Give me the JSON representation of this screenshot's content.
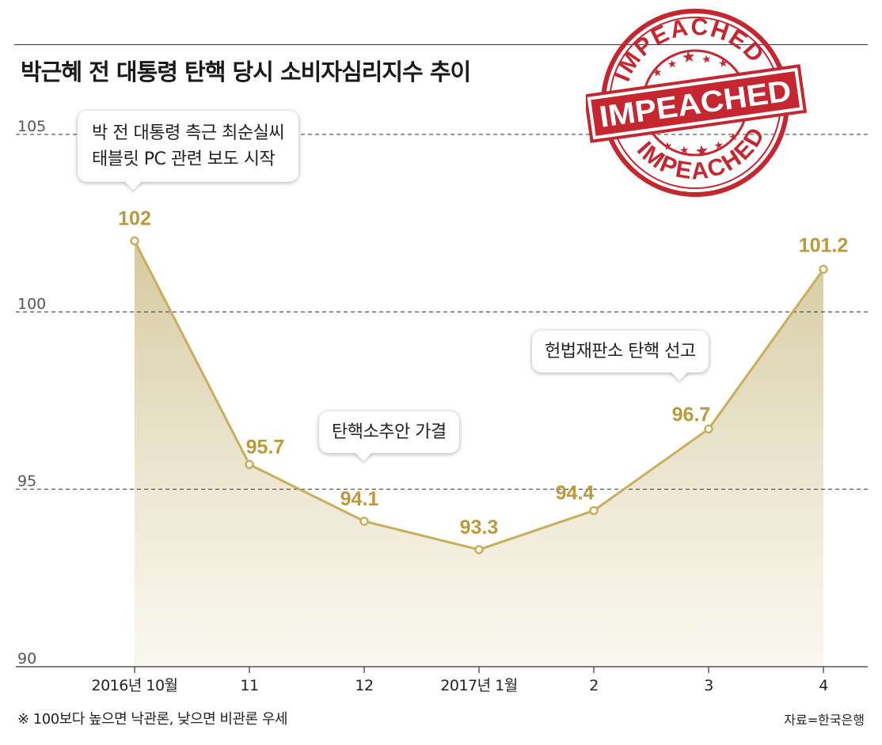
{
  "title": "박근혜 전 대통령 탄핵 당시 소비자심리지수 추이",
  "colors": {
    "line": "#c9af5b",
    "label": "#b99a3c",
    "stamp": "#c4272f"
  },
  "chart_data": {
    "type": "area",
    "categories": [
      "2016년 10월",
      "11",
      "12",
      "2017년 1월",
      "2",
      "3",
      "4"
    ],
    "values": [
      102,
      95.7,
      94.1,
      93.3,
      94.4,
      96.7,
      101.2
    ],
    "data_labels": [
      "102",
      "95.7",
      "94.1",
      "93.3",
      "94.4",
      "96.7",
      "101.2"
    ],
    "yticks": [
      90,
      95,
      100,
      105
    ],
    "ytick_labels": [
      "90",
      "95",
      "100",
      "105"
    ],
    "ylim": [
      90,
      105
    ],
    "grid": "horizontal-dashed",
    "annotations": [
      {
        "text": "박 전 대통령 측근 최순실씨 태블릿 PC 관련 보도 시작",
        "at": "2016년 10월"
      },
      {
        "text": "탄핵소추안 가결",
        "at": "12"
      },
      {
        "text": "헌법재판소 탄핵 선고",
        "at": "3"
      }
    ]
  },
  "callouts": {
    "c1_line1": "박 전 대통령 측근 최순실씨",
    "c1_line2": "태블릿 PC 관련 보도 시작",
    "c2": "탄핵소추안 가결",
    "c3": "헌법재판소 탄핵 선고"
  },
  "stamp": {
    "arc_top": "IMPEACHED",
    "center": "IMPEACHED",
    "arc_bottom": "IMPEACHED"
  },
  "footnote": "※ 100보다 높으면 낙관론, 낮으면 비관론 우세",
  "source": "자료=한국은행"
}
